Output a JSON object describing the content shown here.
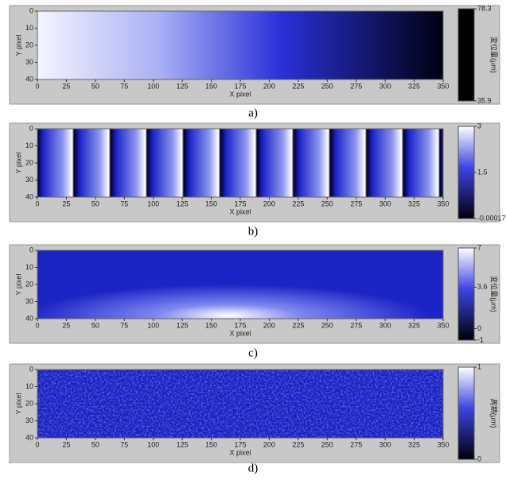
{
  "chart_data": [
    {
      "type": "heatmap",
      "caption": "a)",
      "x_label": "X pixel",
      "y_label": "Y pixel",
      "xlim": [
        0,
        350
      ],
      "xticks": [
        0,
        25,
        50,
        75,
        100,
        125,
        150,
        175,
        200,
        225,
        250,
        275,
        300,
        325,
        350
      ],
      "ylim": [
        0,
        40
      ],
      "yticks": [
        0,
        10,
        20,
        30,
        40
      ],
      "y_inverted": true,
      "colorbar": {
        "label": "変位量(μm)",
        "lim": [
          35.9,
          78.3
        ],
        "ticks": [
          78.3,
          35.9
        ]
      }
    },
    {
      "type": "heatmap",
      "caption": "b)",
      "x_label": "X pixel",
      "y_label": "Y pixel",
      "xlim": [
        0,
        350
      ],
      "xticks": [
        0,
        25,
        50,
        75,
        100,
        125,
        150,
        175,
        200,
        225,
        250,
        275,
        300,
        325,
        350
      ],
      "ylim": [
        0,
        40
      ],
      "yticks": [
        0,
        10,
        20,
        30,
        40
      ],
      "y_inverted": true,
      "colorbar": {
        "lim": [
          -0.00017,
          3
        ],
        "ticks": [
          3,
          1.5,
          -0.00017
        ]
      }
    },
    {
      "type": "heatmap",
      "caption": "c)",
      "x_label": "X pixel",
      "y_label": "Y pixel",
      "xlim": [
        0,
        350
      ],
      "xticks": [
        0,
        25,
        50,
        75,
        100,
        125,
        150,
        175,
        200,
        225,
        250,
        275,
        300,
        325,
        350
      ],
      "ylim": [
        0,
        40
      ],
      "yticks": [
        0,
        10,
        20,
        30,
        40
      ],
      "y_inverted": true,
      "colorbar": {
        "label": "変位量(μm)",
        "lim": [
          -1,
          7
        ],
        "ticks": [
          7,
          3.6,
          0,
          -1
        ]
      }
    },
    {
      "type": "heatmap",
      "caption": "d)",
      "x_label": "X pixel",
      "y_label": "Y pixel",
      "xlim": [
        0,
        350
      ],
      "xticks": [
        0,
        25,
        50,
        75,
        100,
        125,
        150,
        175,
        200,
        225,
        250,
        275,
        300,
        325,
        350
      ],
      "ylim": [
        0,
        40
      ],
      "yticks": [
        0,
        10,
        20,
        30,
        40
      ],
      "y_inverted": true,
      "colorbar": {
        "label": "周期(μm)",
        "lim": [
          0,
          1
        ],
        "ticks": [
          1,
          0
        ]
      }
    }
  ]
}
